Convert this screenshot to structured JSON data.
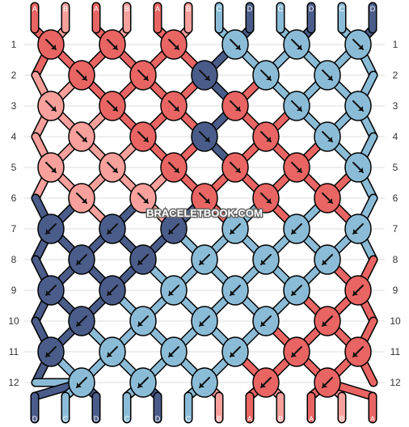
{
  "title": "",
  "watermark": "BRACELETBOOK.COM",
  "colors": {
    "A": "#e96563",
    "B": "#f8a09c",
    "C": "#8bbcd7",
    "D": "#4a5c8a",
    "grid_line": "#dddddd",
    "knot_outline": "#000000"
  },
  "strands_top": [
    "A",
    "B",
    "A",
    "B",
    "A",
    "B",
    "C",
    "D",
    "C",
    "D",
    "C",
    "D"
  ],
  "strands_bottom": [
    "D",
    "C",
    "D",
    "C",
    "D",
    "C",
    "B",
    "A",
    "B",
    "A",
    "B",
    "A"
  ],
  "row_labels": [
    "1",
    "2",
    "3",
    "4",
    "5",
    "6",
    "7",
    "8",
    "9",
    "10",
    "11",
    "12"
  ],
  "knot_rows": [
    {
      "row": "1",
      "knots": [
        {
          "color": "A",
          "dir": "dr"
        },
        {
          "color": "A",
          "dir": "dr"
        },
        {
          "color": "A",
          "dir": "dr"
        },
        {
          "color": "C",
          "dir": "dr"
        },
        {
          "color": "C",
          "dir": "dr"
        },
        {
          "color": "C",
          "dir": "dr"
        }
      ]
    },
    {
      "row": "2",
      "knots": [
        {
          "color": "A",
          "dir": "dr"
        },
        {
          "color": "A",
          "dir": "dr"
        },
        {
          "color": "D",
          "dir": "dr"
        },
        {
          "color": "C",
          "dir": "dr"
        },
        {
          "color": "C",
          "dir": "dr"
        }
      ]
    },
    {
      "row": "3",
      "knots": [
        {
          "color": "B",
          "dir": "dr"
        },
        {
          "color": "A",
          "dir": "dr"
        },
        {
          "color": "A",
          "dir": "dr"
        },
        {
          "color": "A",
          "dir": "dr"
        },
        {
          "color": "C",
          "dir": "dr"
        },
        {
          "color": "C",
          "dir": "dr"
        }
      ]
    },
    {
      "row": "4",
      "knots": [
        {
          "color": "B",
          "dir": "dr"
        },
        {
          "color": "A",
          "dir": "dr"
        },
        {
          "color": "D",
          "dir": "dr"
        },
        {
          "color": "A",
          "dir": "dr"
        },
        {
          "color": "C",
          "dir": "dr"
        }
      ]
    },
    {
      "row": "5",
      "knots": [
        {
          "color": "B",
          "dir": "dr"
        },
        {
          "color": "B",
          "dir": "dr"
        },
        {
          "color": "A",
          "dir": "dr"
        },
        {
          "color": "A",
          "dir": "dr"
        },
        {
          "color": "A",
          "dir": "dr"
        },
        {
          "color": "C",
          "dir": "dr"
        }
      ]
    },
    {
      "row": "6",
      "knots": [
        {
          "color": "B",
          "dir": "dr"
        },
        {
          "color": "B",
          "dir": "dr"
        },
        {
          "color": "A",
          "dir": "dr"
        },
        {
          "color": "A",
          "dir": "dr"
        },
        {
          "color": "A",
          "dir": "dr"
        }
      ]
    },
    {
      "row": "7",
      "knots": [
        {
          "color": "D",
          "dir": "dl"
        },
        {
          "color": "D",
          "dir": "dl"
        },
        {
          "color": "D",
          "dir": "dl"
        },
        {
          "color": "C",
          "dir": "dl"
        },
        {
          "color": "C",
          "dir": "dl"
        },
        {
          "color": "C",
          "dir": "dl"
        }
      ]
    },
    {
      "row": "8",
      "knots": [
        {
          "color": "D",
          "dir": "dl"
        },
        {
          "color": "D",
          "dir": "dl"
        },
        {
          "color": "C",
          "dir": "dl"
        },
        {
          "color": "C",
          "dir": "dl"
        },
        {
          "color": "C",
          "dir": "dl"
        }
      ]
    },
    {
      "row": "9",
      "knots": [
        {
          "color": "D",
          "dir": "dl"
        },
        {
          "color": "D",
          "dir": "dl"
        },
        {
          "color": "C",
          "dir": "dl"
        },
        {
          "color": "C",
          "dir": "dl"
        },
        {
          "color": "C",
          "dir": "dl"
        },
        {
          "color": "A",
          "dir": "dl"
        }
      ]
    },
    {
      "row": "10",
      "knots": [
        {
          "color": "D",
          "dir": "dl"
        },
        {
          "color": "C",
          "dir": "dl"
        },
        {
          "color": "C",
          "dir": "dl"
        },
        {
          "color": "C",
          "dir": "dl"
        },
        {
          "color": "A",
          "dir": "dl"
        }
      ]
    },
    {
      "row": "11",
      "knots": [
        {
          "color": "D",
          "dir": "dl"
        },
        {
          "color": "C",
          "dir": "dl"
        },
        {
          "color": "C",
          "dir": "dl"
        },
        {
          "color": "C",
          "dir": "dl"
        },
        {
          "color": "A",
          "dir": "dl"
        },
        {
          "color": "A",
          "dir": "dl"
        }
      ]
    },
    {
      "row": "12",
      "knots": [
        {
          "color": "C",
          "dir": "dl"
        },
        {
          "color": "C",
          "dir": "dl"
        },
        {
          "color": "C",
          "dir": "dl"
        },
        {
          "color": "A",
          "dir": "dl"
        },
        {
          "color": "A",
          "dir": "dl"
        }
      ]
    }
  ]
}
